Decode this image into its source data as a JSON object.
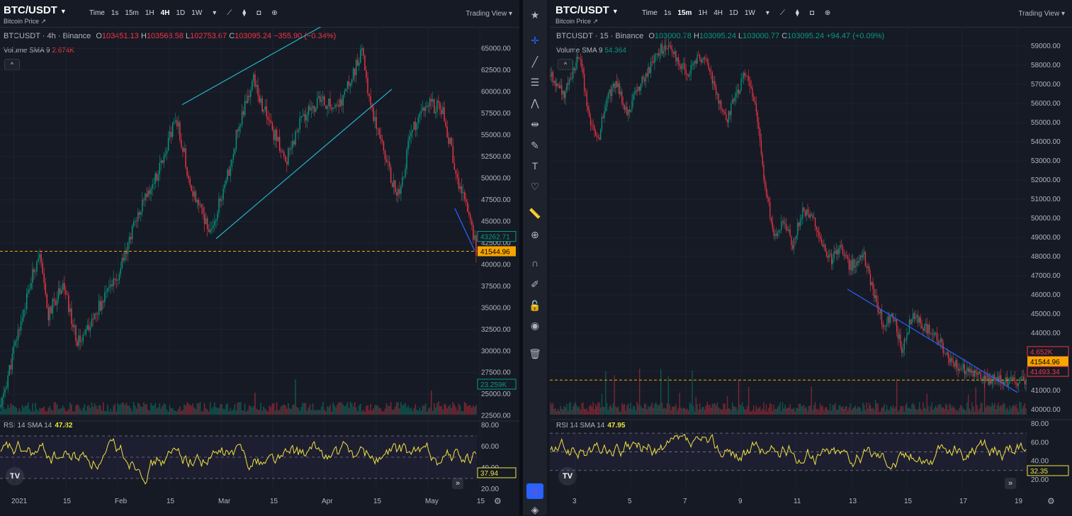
{
  "colors": {
    "up": "#089981",
    "down": "#f23645",
    "rsi": "#f0e442",
    "trend_cyan": "#22b3c9",
    "trend_blue": "#2962ff",
    "hline": "#f7a600",
    "bg": "#161a25"
  },
  "left": {
    "symbol": "BTC/USDT",
    "subtitle": "Bitcoin Price ↗",
    "timeframes": [
      "Time",
      "1s",
      "15m",
      "1H",
      "4H",
      "1D",
      "1W"
    ],
    "active_tf": "4H",
    "trading_view": "Trading View",
    "legend": {
      "name": "BTCUSDT · 4h · Binance",
      "o_label": "O",
      "o": "103451.13",
      "h_label": "H",
      "h": "103568.58",
      "l_label": "L",
      "l": "102753.67",
      "c_label": "C",
      "c": "103095.24",
      "change": "−355.90 (−0.34%)"
    },
    "volume_label": "Volume SMA 9",
    "volume_value": "2.674K",
    "rsi_label": "RSI 14 SMA 14",
    "rsi_value": "47.82",
    "price_badges": {
      "last": "43262.71",
      "hline": "41544.96",
      "vol": "23.259K",
      "rsi": "37.94"
    }
  },
  "right": {
    "symbol": "BTC/USDT",
    "subtitle": "Bitcoin Price ↗",
    "timeframes": [
      "Time",
      "1s",
      "15m",
      "1H",
      "4H",
      "1D",
      "1W"
    ],
    "active_tf": "15m",
    "trading_view": "Trading View",
    "legend": {
      "name": "BTCUSDT · 15 · Binance",
      "o_label": "O",
      "o": "103000.78",
      "h_label": "H",
      "h": "103095.24",
      "l_label": "L",
      "l": "103000.77",
      "c_label": "C",
      "c": "103095.24",
      "change": "+94.47 (+0.09%)"
    },
    "volume_label": "Volume SMA 9",
    "volume_value": "54.364",
    "rsi_label": "RSI 14 SMA 14",
    "rsi_value": "47.95",
    "price_badges": {
      "vol": "4.652K",
      "hline": "41544.96",
      "last": "41493.34",
      "rsi": "32.35"
    }
  },
  "chart_data": [
    {
      "type": "candlestick",
      "title": "BTCUSDT · 4h · Binance",
      "y_ticks": [
        65000,
        62500,
        60000,
        57500,
        55000,
        52500,
        50000,
        47500,
        45000,
        42500,
        40000,
        37500,
        35000,
        32500,
        30000,
        27500,
        25000,
        22500
      ],
      "ylim": [
        21000,
        67500
      ],
      "x_ticks": [
        "2021",
        "15",
        "Feb",
        "15",
        "Mar",
        "15",
        "Apr",
        "15",
        "May",
        "15"
      ],
      "close_path": [
        [
          0,
          23500
        ],
        [
          0.04,
          33000
        ],
        [
          0.08,
          41500
        ],
        [
          0.1,
          34000
        ],
        [
          0.13,
          38000
        ],
        [
          0.16,
          31000
        ],
        [
          0.2,
          34500
        ],
        [
          0.25,
          39000
        ],
        [
          0.28,
          45000
        ],
        [
          0.33,
          50500
        ],
        [
          0.37,
          57000
        ],
        [
          0.4,
          49000
        ],
        [
          0.44,
          44000
        ],
        [
          0.47,
          48500
        ],
        [
          0.5,
          56000
        ],
        [
          0.53,
          61500
        ],
        [
          0.56,
          57000
        ],
        [
          0.6,
          52000
        ],
        [
          0.63,
          56500
        ],
        [
          0.67,
          59000
        ],
        [
          0.71,
          58000
        ],
        [
          0.74,
          62000
        ],
        [
          0.76,
          64500
        ],
        [
          0.78,
          58000
        ],
        [
          0.8,
          55000
        ],
        [
          0.82,
          50000
        ],
        [
          0.84,
          48000
        ],
        [
          0.86,
          55000
        ],
        [
          0.9,
          58500
        ],
        [
          0.93,
          58000
        ],
        [
          0.96,
          50000
        ],
        [
          0.985,
          46000
        ],
        [
          1,
          41800
        ]
      ],
      "hline": 41544.96,
      "annotations": [
        "rising wedge upper trendline",
        "rising wedge lower trendline",
        "final drop trendline"
      ],
      "rsi": {
        "ylim": [
          20,
          80
        ],
        "ticks": [
          80,
          60,
          40,
          20
        ],
        "bands": [
          70,
          50,
          30
        ],
        "value": 47.82
      }
    },
    {
      "type": "candlestick",
      "title": "BTCUSDT · 15 · Binance",
      "y_ticks": [
        59000,
        58000,
        57000,
        56000,
        55000,
        54000,
        53000,
        52000,
        51000,
        50000,
        49000,
        48000,
        47000,
        46000,
        45000,
        44000,
        43000,
        42000,
        41000,
        40000
      ],
      "ylim": [
        39000,
        60000
      ],
      "x_ticks": [
        "3",
        "5",
        "7",
        "9",
        "11",
        "13",
        "15",
        "17",
        "19"
      ],
      "close_path": [
        [
          0,
          57500
        ],
        [
          0.03,
          56500
        ],
        [
          0.06,
          58600
        ],
        [
          0.08,
          55500
        ],
        [
          0.1,
          54000
        ],
        [
          0.12,
          56500
        ],
        [
          0.14,
          57000
        ],
        [
          0.16,
          55500
        ],
        [
          0.18,
          56500
        ],
        [
          0.2,
          57500
        ],
        [
          0.23,
          58800
        ],
        [
          0.25,
          59000
        ],
        [
          0.27,
          58200
        ],
        [
          0.29,
          57500
        ],
        [
          0.31,
          58500
        ],
        [
          0.33,
          58200
        ],
        [
          0.35,
          56500
        ],
        [
          0.37,
          55000
        ],
        [
          0.39,
          56500
        ],
        [
          0.41,
          57500
        ],
        [
          0.43,
          56200
        ],
        [
          0.45,
          52000
        ],
        [
          0.47,
          49000
        ],
        [
          0.49,
          50000
        ],
        [
          0.51,
          48500
        ],
        [
          0.53,
          50500
        ],
        [
          0.55,
          50000
        ],
        [
          0.57,
          48800
        ],
        [
          0.59,
          47800
        ],
        [
          0.61,
          48500
        ],
        [
          0.63,
          47500
        ],
        [
          0.66,
          48000
        ],
        [
          0.68,
          46000
        ],
        [
          0.7,
          44500
        ],
        [
          0.72,
          45000
        ],
        [
          0.74,
          43000
        ],
        [
          0.76,
          45000
        ],
        [
          0.78,
          44500
        ],
        [
          0.8,
          44000
        ],
        [
          0.82,
          43500
        ],
        [
          0.84,
          42500
        ],
        [
          0.86,
          42200
        ],
        [
          0.88,
          41900
        ],
        [
          0.9,
          41700
        ],
        [
          0.92,
          41600
        ],
        [
          0.94,
          41550
        ],
        [
          0.96,
          41520
        ],
        [
          0.98,
          41500
        ],
        [
          1,
          41493
        ]
      ],
      "hline": 41544.96,
      "annotations": [
        "descending trendline"
      ],
      "rsi": {
        "ylim": [
          10,
          80
        ],
        "ticks": [
          80,
          60,
          40,
          20
        ],
        "bands": [
          70,
          50,
          30
        ],
        "value": 47.95
      }
    }
  ],
  "toolbar_icons": [
    "crosshair-icon",
    "trendline-icon",
    "fib-icon",
    "pattern-icon",
    "projection-icon",
    "brush-icon",
    "text-icon",
    "heart-icon",
    "ruler-icon",
    "zoom-in-icon",
    "magnet-icon",
    "lock-draw-icon",
    "lock-icon",
    "eye-icon",
    "trash-icon",
    "star-watchlist-icon",
    "layers-icon"
  ]
}
